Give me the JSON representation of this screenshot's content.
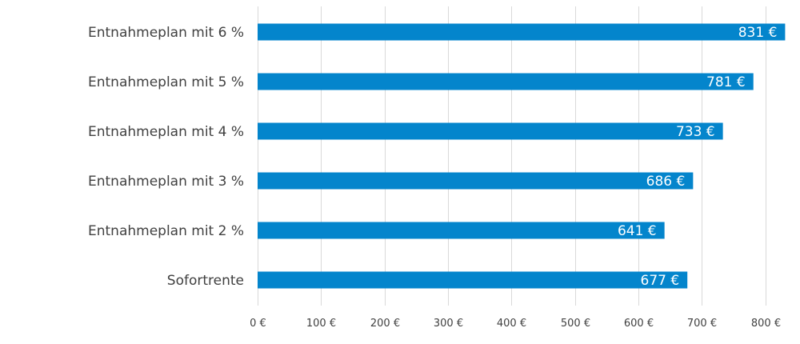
{
  "chart_data": {
    "type": "bar",
    "orientation": "horizontal",
    "categories": [
      "Entnahmeplan mit 6 %",
      "Entnahmeplan mit 5 %",
      "Entnahmeplan mit 4 %",
      "Entnahmeplan mit 3 %",
      "Entnahmeplan mit 2 %",
      "Sofortrente"
    ],
    "values": [
      831,
      781,
      733,
      686,
      641,
      677
    ],
    "data_labels": [
      "831 €",
      "781 €",
      "733 €",
      "686 €",
      "641 €",
      "677 €"
    ],
    "x_ticks": [
      0,
      100,
      200,
      300,
      400,
      500,
      600,
      700,
      800
    ],
    "x_tick_labels": [
      "0 €",
      "100 €",
      "200 €",
      "300 €",
      "400 €",
      "500 €",
      "600 €",
      "700 €",
      "800 €"
    ],
    "xlim": [
      0,
      840
    ],
    "title": "",
    "xlabel": "",
    "ylabel": "",
    "grid": "vertical",
    "legend": "none",
    "bar_color": "#0485cc"
  }
}
